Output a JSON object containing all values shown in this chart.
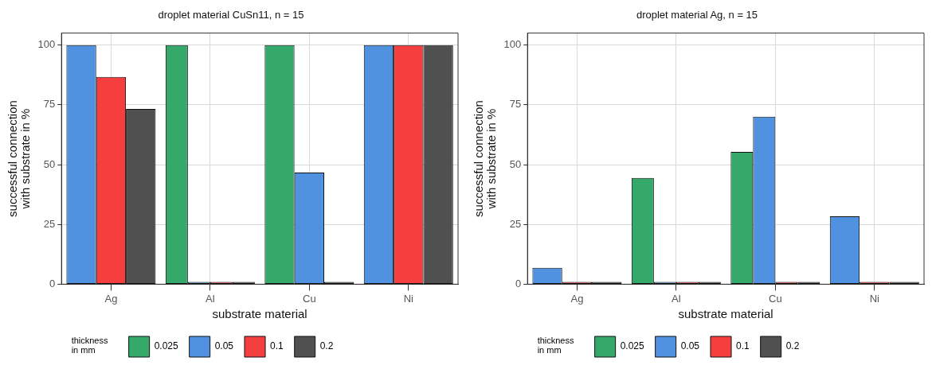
{
  "chart_data": [
    {
      "type": "bar",
      "title": "droplet material CuSn11, n = 15",
      "xlabel": "substrate material",
      "ylabel": "successful connection\nwith substrate in %",
      "legend_title": "thickness\nin mm",
      "categories": [
        "Ag",
        "Al",
        "Cu",
        "Ni"
      ],
      "ylim": [
        0,
        105
      ],
      "yticks": [
        0,
        25,
        50,
        75,
        100
      ],
      "grid": true,
      "legend": "bottom",
      "series": [
        {
          "name": "0.025",
          "color": "#35a96a",
          "values": [
            null,
            100,
            100,
            null
          ]
        },
        {
          "name": "0.05",
          "color": "#5192e0",
          "values": [
            100,
            1,
            46.7,
            100
          ]
        },
        {
          "name": "0.1",
          "color": "#f53e3e",
          "values": [
            86.7,
            1,
            null,
            100
          ]
        },
        {
          "name": "0.2",
          "color": "#505050",
          "values": [
            73.3,
            1,
            1,
            100
          ]
        }
      ]
    },
    {
      "type": "bar",
      "title": "droplet material Ag, n = 15",
      "xlabel": "substrate material",
      "ylabel": "successful connection\nwith substrate in %",
      "legend_title": "thickness\nin mm",
      "categories": [
        "Ag",
        "Al",
        "Cu",
        "Ni"
      ],
      "ylim": [
        0,
        105
      ],
      "yticks": [
        0,
        25,
        50,
        75,
        100
      ],
      "grid": true,
      "legend": "bottom",
      "series": [
        {
          "name": "0.025",
          "color": "#35a96a",
          "values": [
            null,
            44.4,
            55.3,
            null
          ]
        },
        {
          "name": "0.05",
          "color": "#5192e0",
          "values": [
            6.9,
            1,
            70,
            28.4
          ]
        },
        {
          "name": "0.1",
          "color": "#f53e3e",
          "values": [
            1,
            1,
            1,
            1
          ]
        },
        {
          "name": "0.2",
          "color": "#505050",
          "values": [
            1,
            1,
            1,
            1
          ]
        }
      ]
    }
  ]
}
